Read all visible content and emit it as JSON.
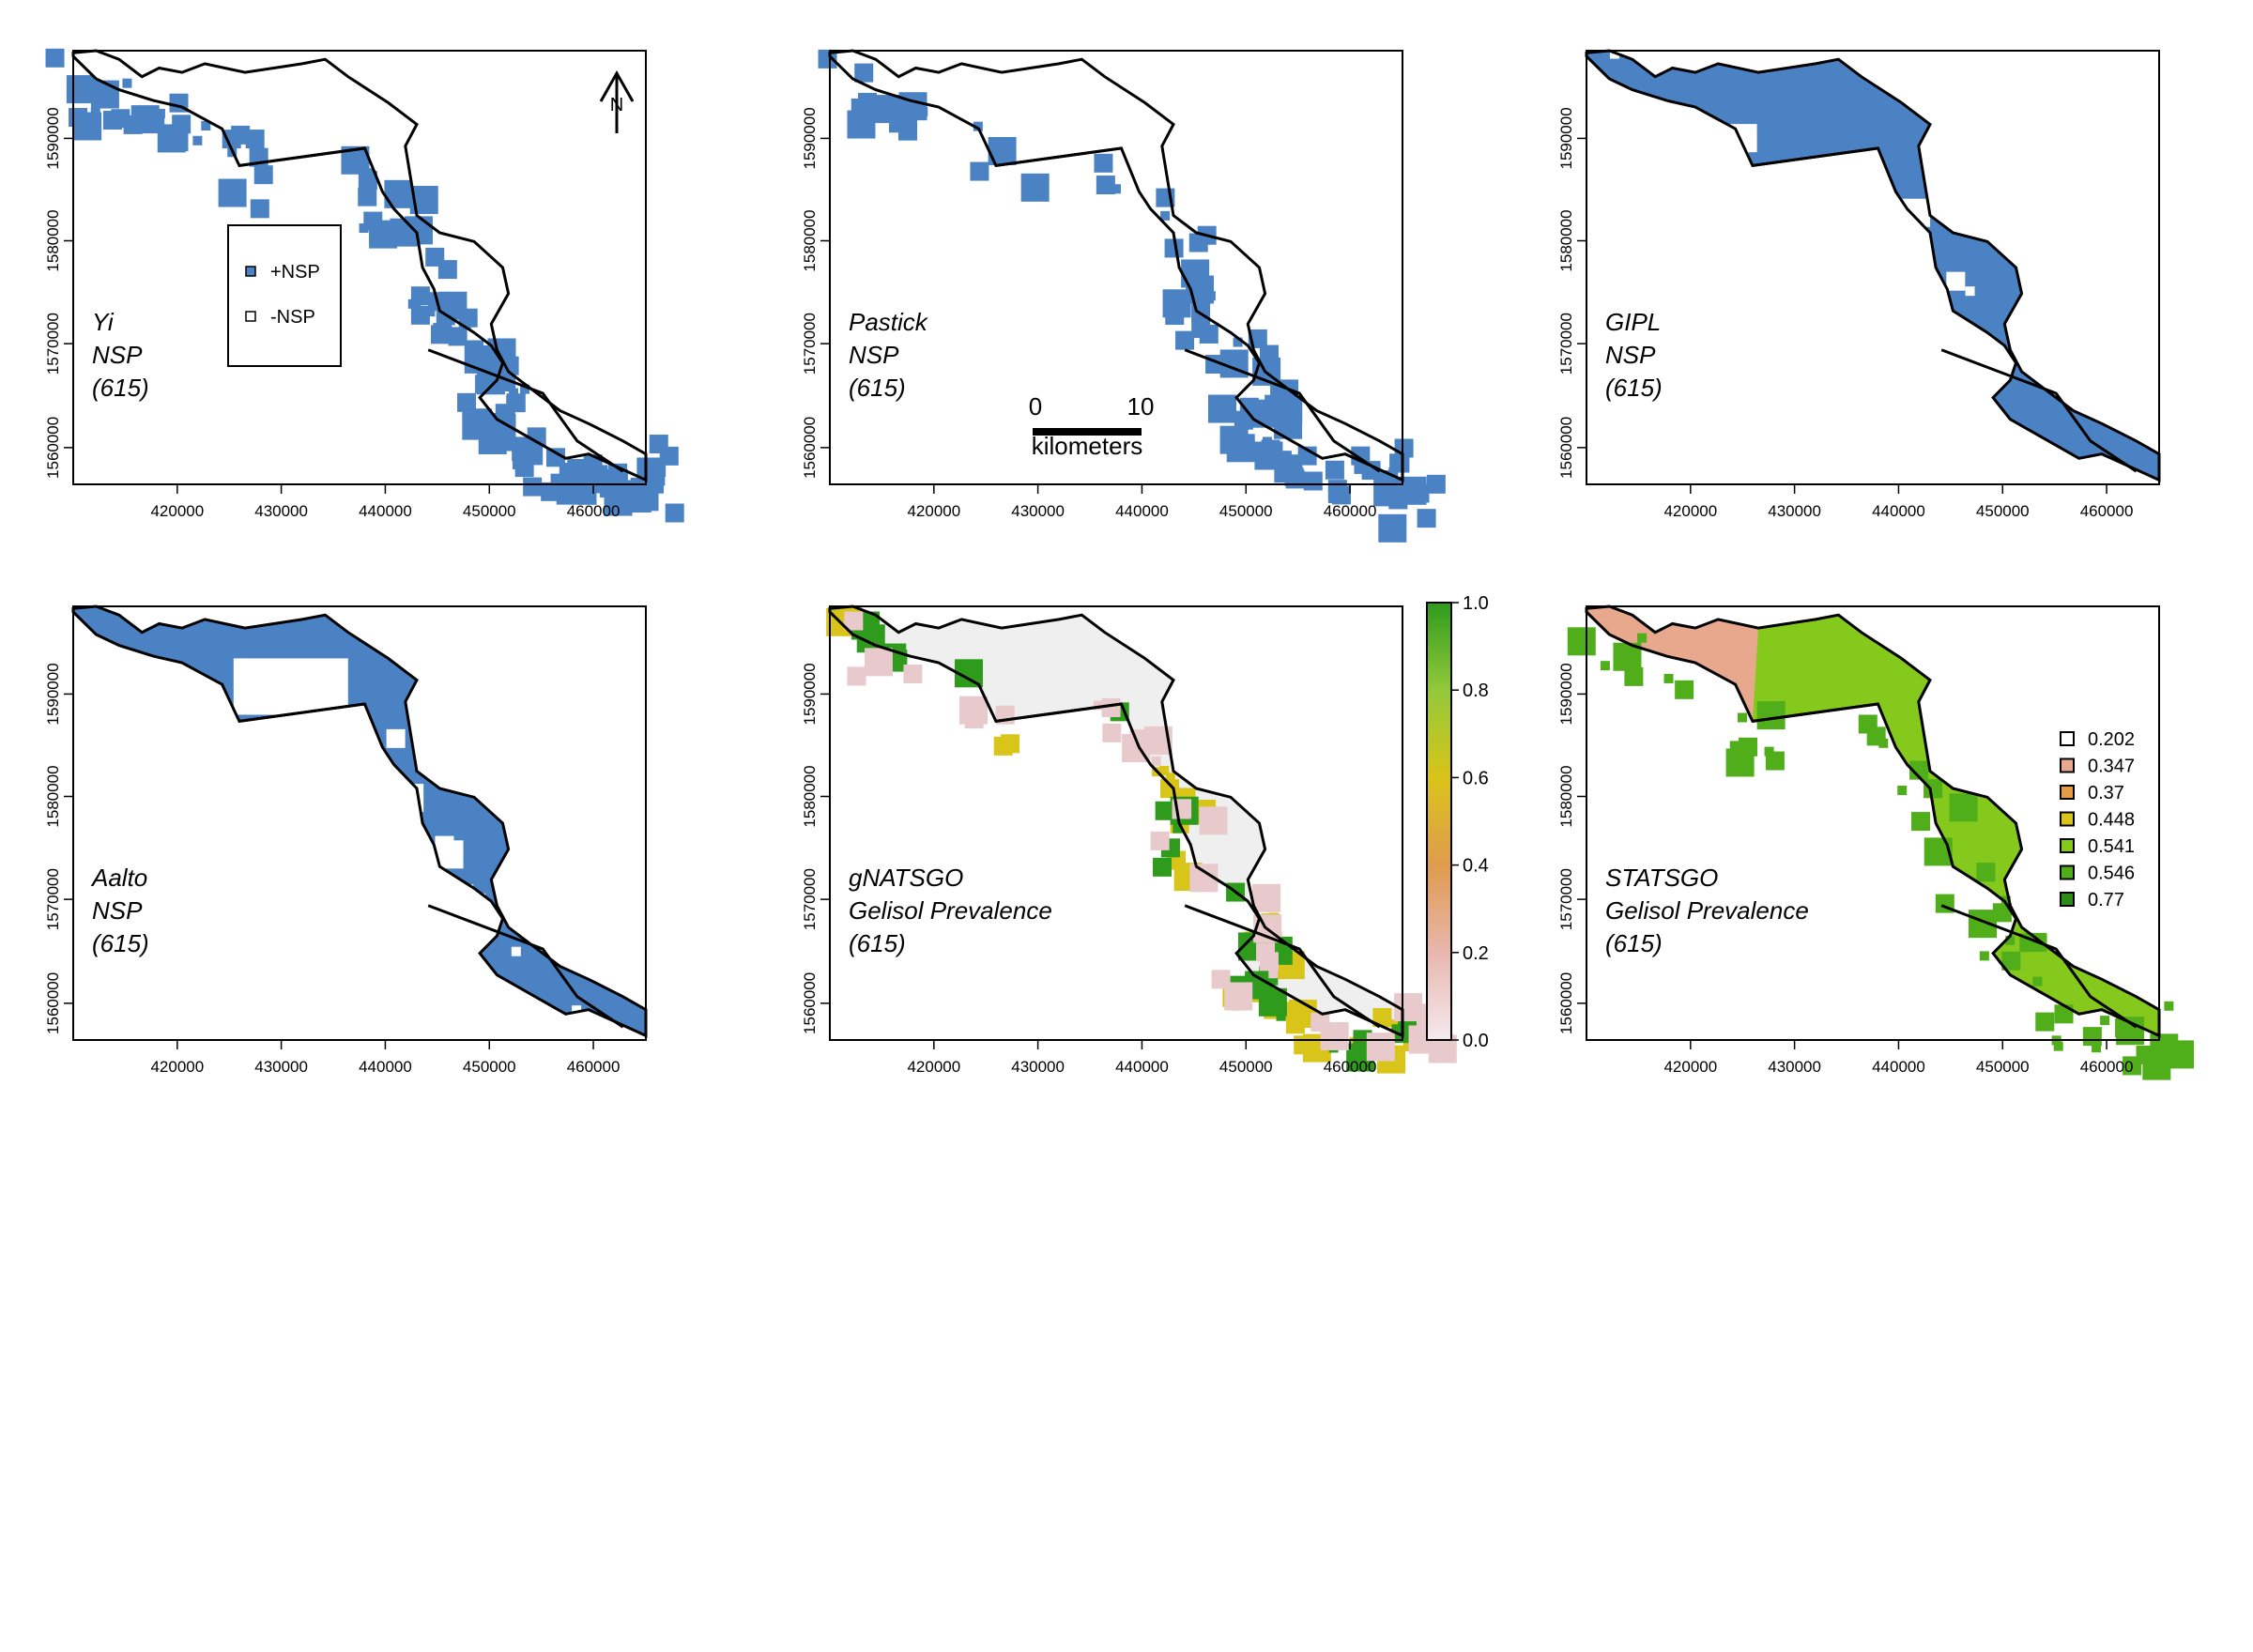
{
  "x_ticks": [
    "420000",
    "430000",
    "440000",
    "450000",
    "460000"
  ],
  "y_ticks": [
    "1560000",
    "1570000",
    "1580000",
    "1590000"
  ],
  "panels": [
    {
      "id": "yi",
      "label": [
        "Yi",
        "NSP",
        "(615)"
      ],
      "fill": "#4a82c3"
    },
    {
      "id": "pastick",
      "label": [
        "Pastick",
        "NSP",
        "(615)"
      ],
      "fill": "#4a82c3"
    },
    {
      "id": "gipl",
      "label": [
        "GIPL",
        "NSP",
        "(615)"
      ],
      "fill": "#4a82c3"
    },
    {
      "id": "aalto",
      "label": [
        "Aalto",
        "NSP",
        "(615)"
      ],
      "fill": "#4a82c3"
    },
    {
      "id": "gnatsgo",
      "label": [
        "gNATSGO",
        "Gelisol Prevalence",
        "(615)"
      ],
      "fill": "#efefef"
    },
    {
      "id": "statsgo",
      "label": [
        "STATSGO",
        "Gelisol Prevalence",
        "(615)"
      ],
      "fill": "#84c91c"
    }
  ],
  "nsp_legend": {
    "items": [
      {
        "label": "+NSP",
        "color": "#4a82c3"
      },
      {
        "label": "-NSP",
        "color": "#ffffff"
      }
    ]
  },
  "north_arrow": {
    "label": "N"
  },
  "scale_bar": {
    "start": "0",
    "end": "10",
    "unit": "kilometers"
  },
  "colorbar": {
    "ticks": [
      "0.0",
      "0.2",
      "0.4",
      "0.6",
      "0.8",
      "1.0"
    ],
    "colors": [
      "#f6e9ef",
      "#e8b7ae",
      "#e09b4e",
      "#d9c41a",
      "#93c93a",
      "#2e9b1c"
    ]
  },
  "statsgo_legend": {
    "items": [
      {
        "label": "0.202",
        "color": "#ffffff"
      },
      {
        "label": "0.347",
        "color": "#e8a88d"
      },
      {
        "label": "0.37",
        "color": "#e59a44"
      },
      {
        "label": "0.448",
        "color": "#d9c41a"
      },
      {
        "label": "0.541",
        "color": "#84c91c"
      },
      {
        "label": "0.546",
        "color": "#4fae1a"
      },
      {
        "label": "0.77",
        "color": "#2b8c1a"
      }
    ]
  }
}
